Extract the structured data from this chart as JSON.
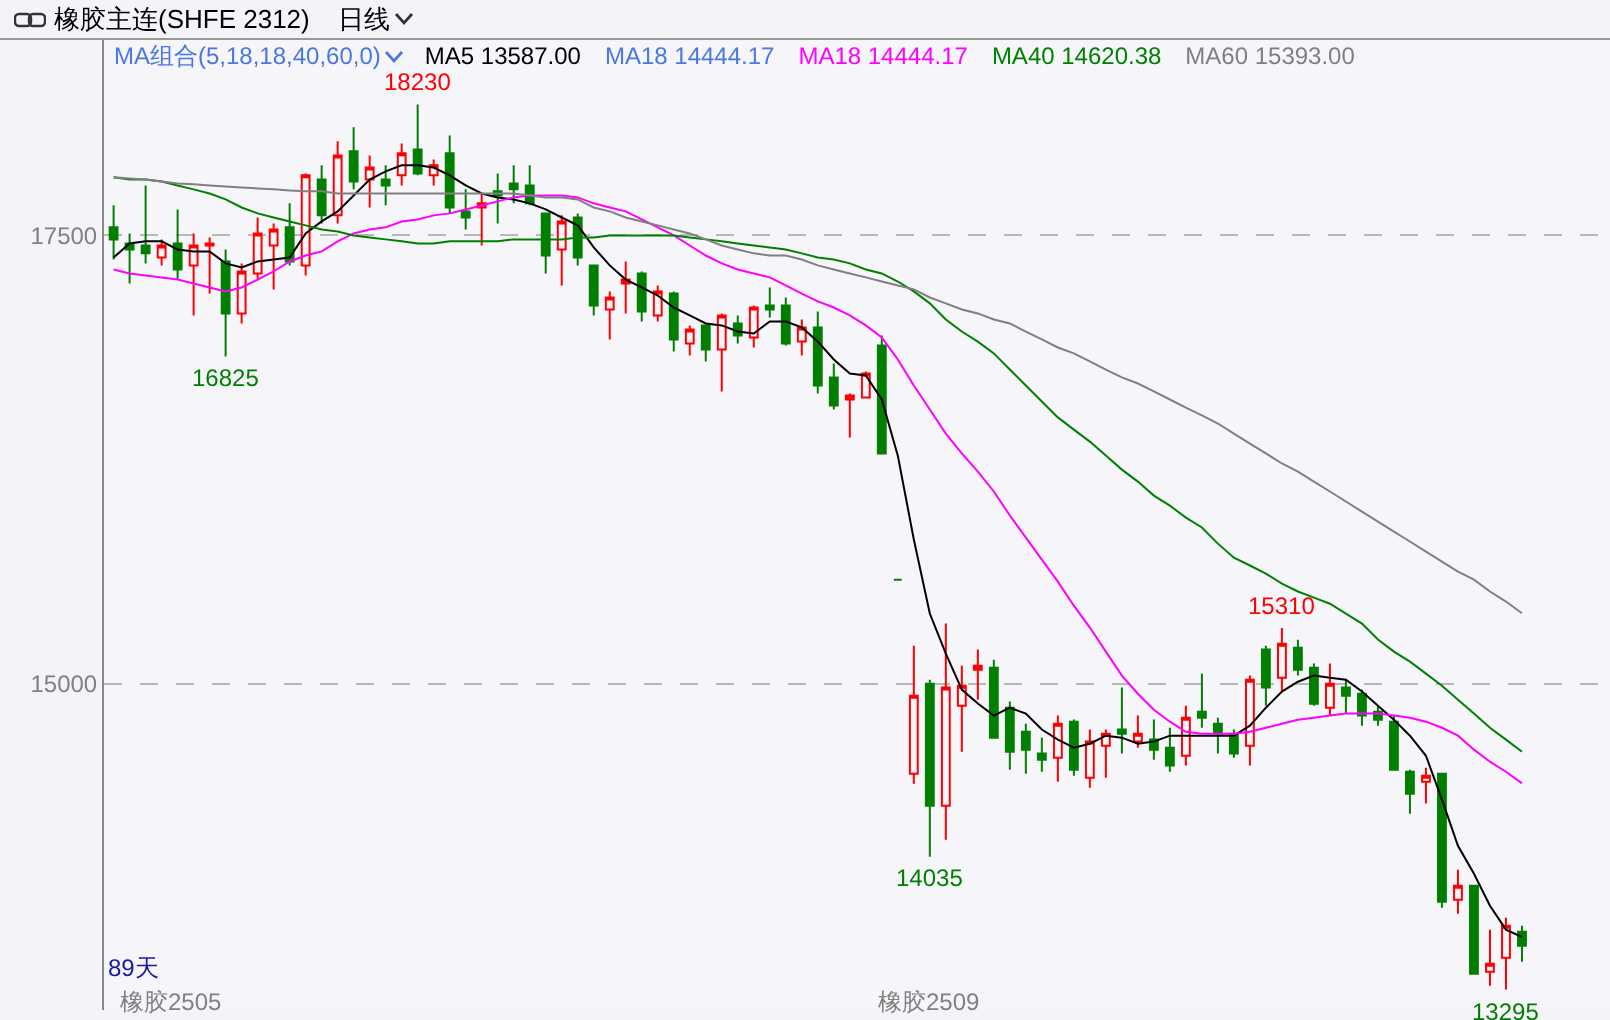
{
  "chart_data": {
    "type": "candlestick",
    "title": "橡胶主连(SHFE 2312)",
    "subtitle": "MA组合(5,18,18,40,60,0)",
    "categories": [
      null,
      null,
      null,
      null,
      null,
      null,
      null,
      null,
      null,
      null,
      null,
      null,
      null,
      null,
      null,
      null,
      null,
      null,
      null,
      null,
      null,
      null,
      null,
      null,
      null,
      null,
      null,
      null,
      null,
      null,
      null,
      null,
      null,
      null,
      null,
      null,
      null,
      null,
      null,
      null,
      null,
      null,
      null,
      null,
      null,
      null,
      null,
      null,
      null,
      null,
      null,
      null,
      null,
      null,
      null,
      null,
      null,
      null,
      null,
      null,
      null,
      null,
      null,
      null,
      null,
      null,
      null,
      null,
      null,
      null,
      null,
      null,
      null,
      null,
      null,
      null,
      null,
      null,
      null,
      null,
      null,
      null,
      null,
      null,
      null,
      null,
      null,
      null,
      null
    ],
    "ohlc": [
      [
        17545,
        17668,
        17366,
        17478
      ],
      [
        17455,
        17511,
        17232,
        17422
      ],
      [
        17444,
        17779,
        17344,
        17400
      ],
      [
        17377,
        17478,
        17333,
        17444
      ],
      [
        17455,
        17645,
        17254,
        17310
      ],
      [
        17333,
        17511,
        17054,
        17444
      ],
      [
        17444,
        17489,
        17176,
        17455
      ],
      [
        17355,
        17422,
        16825,
        17065
      ],
      [
        17065,
        17344,
        17009,
        17299
      ],
      [
        17288,
        17600,
        17254,
        17511
      ],
      [
        17444,
        17567,
        17199,
        17533
      ],
      [
        17545,
        17679,
        17333,
        17355
      ],
      [
        17333,
        17846,
        17277,
        17835
      ],
      [
        17812,
        17891,
        17567,
        17612
      ],
      [
        17612,
        18025,
        17567,
        17946
      ],
      [
        17969,
        18103,
        17757,
        17801
      ],
      [
        17812,
        17946,
        17656,
        17879
      ],
      [
        17812,
        17891,
        17668,
        17779
      ],
      [
        17835,
        18013,
        17779,
        17958
      ],
      [
        17980,
        18230,
        17835,
        17846
      ],
      [
        17835,
        17924,
        17779,
        17891
      ],
      [
        17958,
        18058,
        17623,
        17656
      ],
      [
        17634,
        17757,
        17533,
        17600
      ],
      [
        17656,
        17734,
        17444,
        17679
      ],
      [
        17746,
        17846,
        17567,
        17723
      ],
      [
        17790,
        17891,
        17679,
        17757
      ],
      [
        17779,
        17891,
        17668,
        17679
      ],
      [
        17623,
        17623,
        17288,
        17388
      ],
      [
        17422,
        17612,
        17221,
        17578
      ],
      [
        17600,
        17623,
        17333,
        17377
      ],
      [
        17333,
        17333,
        17054,
        17109
      ],
      [
        17087,
        17188,
        16920,
        17154
      ],
      [
        17232,
        17355,
        17065,
        17254
      ],
      [
        17288,
        17299,
        17020,
        17076
      ],
      [
        17054,
        17221,
        17020,
        17188
      ],
      [
        17176,
        17188,
        16853,
        16920
      ],
      [
        16897,
        16998,
        16830,
        16975
      ],
      [
        16998,
        16998,
        16797,
        16864
      ],
      [
        16864,
        17065,
        16630,
        17054
      ],
      [
        17009,
        17054,
        16897,
        16942
      ],
      [
        16931,
        17109,
        16875,
        17098
      ],
      [
        17109,
        17210,
        17043,
        17087
      ],
      [
        17109,
        17154,
        16886,
        16897
      ],
      [
        16908,
        17031,
        16830,
        16987
      ],
      [
        16987,
        17076,
        16618,
        16663
      ],
      [
        16708,
        16786,
        16529,
        16551
      ],
      [
        16585,
        16618,
        16373,
        16607
      ],
      [
        16596,
        16741,
        16596,
        16730
      ],
      [
        16886,
        16942,
        16284,
        16284
      ],
      [
        15580,
        15580,
        15580,
        15580
      ],
      [
        14498,
        15212,
        14442,
        14933
      ],
      [
        15000,
        15022,
        14035,
        14319
      ],
      [
        14319,
        15335,
        14130,
        14978
      ],
      [
        14877,
        15100,
        14621,
        14989
      ],
      [
        15078,
        15190,
        14911,
        15100
      ],
      [
        15089,
        15134,
        14699,
        14699
      ],
      [
        14866,
        14900,
        14520,
        14621
      ],
      [
        14732,
        14777,
        14498,
        14632
      ],
      [
        14610,
        14699,
        14509,
        14576
      ],
      [
        14587,
        14822,
        14453,
        14777
      ],
      [
        14788,
        14800,
        14487,
        14520
      ],
      [
        14476,
        14744,
        14420,
        14677
      ],
      [
        14654,
        14744,
        14476,
        14721
      ],
      [
        14744,
        14978,
        14610,
        14721
      ],
      [
        14677,
        14822,
        14643,
        14721
      ],
      [
        14688,
        14800,
        14576,
        14632
      ],
      [
        14643,
        14754,
        14509,
        14543
      ],
      [
        14598,
        14877,
        14543,
        14810
      ],
      [
        14844,
        15056,
        14754,
        14810
      ],
      [
        14777,
        14810,
        14610,
        14721
      ],
      [
        14721,
        14744,
        14587,
        14610
      ],
      [
        14654,
        15045,
        14543,
        15022
      ],
      [
        15190,
        15212,
        14877,
        14978
      ],
      [
        15033,
        15310,
        14955,
        15223
      ],
      [
        15201,
        15245,
        15045,
        15078
      ],
      [
        15089,
        15112,
        14877,
        14888
      ],
      [
        14866,
        15112,
        14822,
        15000
      ],
      [
        14978,
        15022,
        14833,
        14933
      ],
      [
        14944,
        14967,
        14766,
        14822
      ],
      [
        14844,
        14877,
        14766,
        14799
      ],
      [
        14788,
        14822,
        14520,
        14520
      ],
      [
        14509,
        14520,
        14275,
        14386
      ],
      [
        14453,
        14531,
        14331,
        14487
      ],
      [
        14498,
        14498,
        13750,
        13784
      ],
      [
        13795,
        13962,
        13717,
        13873
      ],
      [
        13873,
        13873,
        13382,
        13382
      ],
      [
        13393,
        13627,
        13315,
        13438
      ],
      [
        13471,
        13694,
        13295,
        13650
      ],
      [
        13616,
        13650,
        13449,
        13538
      ]
    ],
    "series": [
      {
        "type": "line",
        "name": "MA5 13587.00",
        "color": "#000000",
        "values": [
          17377,
          17455,
          17467,
          17467,
          17422,
          17411,
          17411,
          17344,
          17321,
          17355,
          17366,
          17377,
          17511,
          17578,
          17634,
          17723,
          17812,
          17857,
          17891,
          17891,
          17879,
          17835,
          17779,
          17734,
          17712,
          17700,
          17679,
          17645,
          17600,
          17556,
          17433,
          17333,
          17254,
          17210,
          17165,
          17098,
          17054,
          17009,
          16998,
          16964,
          16953,
          17020,
          17020,
          16987,
          16908,
          16808,
          16730,
          16719,
          16585,
          16272,
          15804,
          15391,
          15168,
          14967,
          14889,
          14822,
          14866,
          14833,
          14744,
          14688,
          14643,
          14665,
          14710,
          14699,
          14665,
          14677,
          14710,
          14710,
          14710,
          14710,
          14710,
          14766,
          14866,
          14956,
          15011,
          15045,
          15033,
          15022,
          14956,
          14877,
          14799,
          14710,
          14598,
          14353,
          14096,
          13940,
          13761,
          13628,
          13587.0
        ]
      },
      {
        "type": "line",
        "name": "MA18 14444.17",
        "color": "#ff00ff",
        "values": [
          17310,
          17288,
          17277,
          17266,
          17254,
          17232,
          17210,
          17188,
          17210,
          17254,
          17299,
          17355,
          17388,
          17411,
          17467,
          17511,
          17533,
          17545,
          17578,
          17589,
          17612,
          17623,
          17645,
          17667,
          17690,
          17712,
          17723,
          17723,
          17723,
          17712,
          17679,
          17656,
          17634,
          17589,
          17545,
          17500,
          17444,
          17388,
          17344,
          17310,
          17288,
          17266,
          17221,
          17176,
          17132,
          17098,
          17054,
          16998,
          16931,
          16808,
          16663,
          16529,
          16395,
          16284,
          16183,
          16072,
          15938,
          15815,
          15692,
          15569,
          15435,
          15313,
          15179,
          15045,
          14944,
          14855,
          14788,
          14732,
          14721,
          14721,
          14721,
          14732,
          14754,
          14777,
          14799,
          14810,
          14822,
          14833,
          14833,
          14833,
          14822,
          14810,
          14788,
          14754,
          14710,
          14632,
          14565,
          14509,
          14444.17
        ]
      },
      {
        "type": "line",
        "name": "MA40 14620.38",
        "color": "#008000",
        "values": [
          17824,
          17812,
          17812,
          17801,
          17779,
          17757,
          17734,
          17701,
          17656,
          17623,
          17600,
          17578,
          17556,
          17533,
          17522,
          17500,
          17489,
          17478,
          17467,
          17455,
          17455,
          17467,
          17467,
          17467,
          17467,
          17478,
          17478,
          17478,
          17478,
          17489,
          17489,
          17500,
          17500,
          17500,
          17500,
          17500,
          17489,
          17478,
          17467,
          17455,
          17444,
          17433,
          17422,
          17400,
          17377,
          17366,
          17344,
          17310,
          17288,
          17243,
          17188,
          17121,
          17031,
          16964,
          16908,
          16842,
          16752,
          16663,
          16574,
          16485,
          16417,
          16350,
          16272,
          16194,
          16127,
          16049,
          15993,
          15926,
          15871,
          15781,
          15703,
          15659,
          15614,
          15558,
          15514,
          15480,
          15446,
          15391,
          15335,
          15246,
          15179,
          15123,
          15056,
          14989,
          14911,
          14833,
          14754,
          14688,
          14620.38
        ]
      },
      {
        "type": "line",
        "name": "MA60 15393.00",
        "color": "#808080",
        "values": [
          17824,
          17818,
          17812,
          17801,
          17790,
          17785,
          17779,
          17773,
          17768,
          17762,
          17757,
          17751,
          17746,
          17746,
          17734,
          17734,
          17734,
          17734,
          17734,
          17734,
          17734,
          17734,
          17734,
          17734,
          17734,
          17734,
          17723,
          17712,
          17712,
          17701,
          17656,
          17634,
          17600,
          17578,
          17556,
          17533,
          17511,
          17478,
          17444,
          17422,
          17400,
          17388,
          17388,
          17366,
          17333,
          17310,
          17288,
          17266,
          17243,
          17221,
          17199,
          17154,
          17121,
          17087,
          17065,
          17031,
          17009,
          16964,
          16920,
          16875,
          16842,
          16797,
          16752,
          16708,
          16674,
          16630,
          16585,
          16540,
          16496,
          16451,
          16395,
          16339,
          16284,
          16228,
          16183,
          16127,
          16072,
          16016,
          15960,
          15904,
          15848,
          15793,
          15737,
          15681,
          15625,
          15580,
          15514,
          15458,
          15393.0
        ]
      }
    ],
    "ylim": [
      13180,
      18590
    ],
    "yticks": [
      17500,
      15000
    ],
    "grid": "y",
    "tick_labels": "y",
    "line_style": "solid",
    "annotations": [
      "日线",
      "MA18 14444.17",
      "89天",
      "橡胶2505",
      "橡胶2509",
      {
        "text": "18230",
        "y": 18230
      },
      {
        "text": "16825",
        "y": 16825
      },
      {
        "text": "15310",
        "y": 15310
      },
      {
        "text": "14035",
        "y": 14035
      },
      {
        "text": "13295",
        "y": 13295
      }
    ]
  }
}
